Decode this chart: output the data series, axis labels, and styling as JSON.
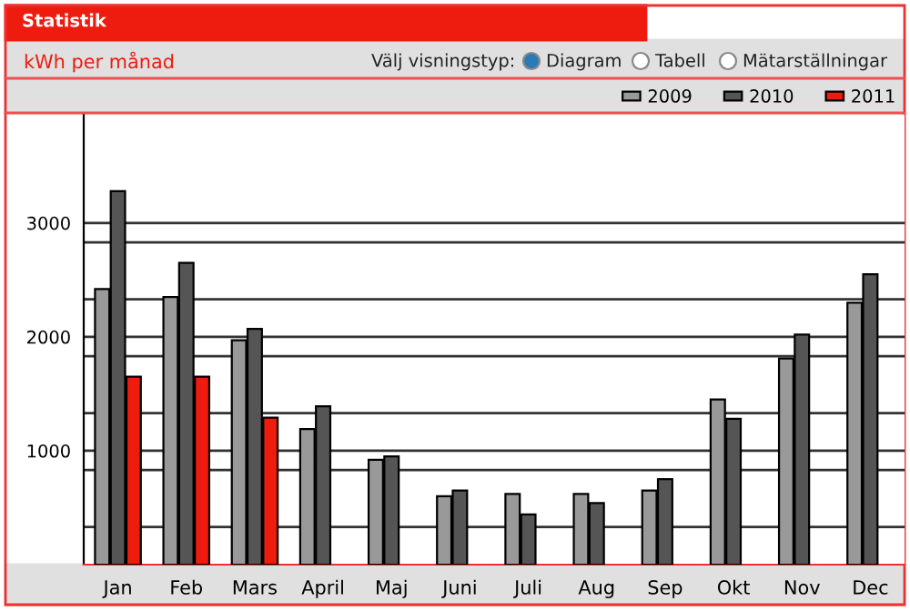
{
  "chart_data": {
    "type": "bar",
    "title": "Statistik",
    "ylabel": "kWh per månad",
    "annotations": [
      "Välj visningstyp:",
      "Diagram",
      "Tabell",
      "Mätarställningar"
    ],
    "categories": [
      "Jan",
      "Feb",
      "Mars",
      "April",
      "Maj",
      "Juni",
      "Juli",
      "Aug",
      "Sep",
      "Okt",
      "Nov",
      "Dec"
    ],
    "series": [
      {
        "name": "2009",
        "color": "#999999",
        "values": [
          2420,
          2350,
          1970,
          1190,
          920,
          600,
          620,
          620,
          650,
          1450,
          1810,
          2300
        ]
      },
      {
        "name": "2010",
        "color": "#555555",
        "values": [
          3280,
          2650,
          2070,
          1390,
          950,
          650,
          440,
          540,
          750,
          1280,
          2020,
          2550
        ]
      },
      {
        "name": "2011",
        "color": "#ee1c0e",
        "values": [
          1650,
          1650,
          1290,
          null,
          null,
          null,
          null,
          null,
          null,
          null,
          null,
          null
        ]
      }
    ],
    "ylim": [
      0,
      3950
    ],
    "yticks": [
      {
        "value": 330,
        "label": null
      },
      {
        "value": 830,
        "label": null
      },
      1000,
      {
        "value": 1330,
        "label": null
      },
      {
        "value": 1830,
        "label": null
      },
      2000,
      {
        "value": 2330,
        "label": null
      },
      {
        "value": 2830,
        "label": null
      },
      3000
    ],
    "grid": "y",
    "legend": "top right"
  }
}
